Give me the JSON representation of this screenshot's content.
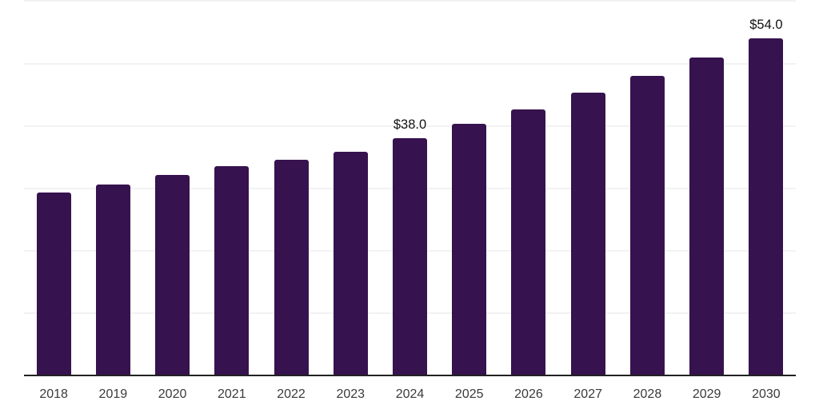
{
  "chart_data": {
    "type": "bar",
    "title": "",
    "xlabel": "",
    "ylabel": "",
    "categories": [
      "2018",
      "2019",
      "2020",
      "2021",
      "2022",
      "2023",
      "2024",
      "2025",
      "2026",
      "2027",
      "2028",
      "2029",
      "2030"
    ],
    "values": [
      29.3,
      30.6,
      32.1,
      33.5,
      34.6,
      35.9,
      38.0,
      40.3,
      42.7,
      45.3,
      48.0,
      50.9,
      54.0
    ],
    "bar_labels": [
      "",
      "",
      "",
      "",
      "",
      "",
      "$38.0",
      "",
      "",
      "",
      "",
      "",
      "$54.0"
    ],
    "ylim": [
      0,
      60
    ],
    "grid": {
      "visible": true,
      "step": 10
    },
    "y_axis_tick_labels_visible": false,
    "legend": "none"
  },
  "colors": {
    "bar": "#36124e",
    "axis": "#222222",
    "gridline": "#f2f2f2",
    "tick_label": "#3a3a3a",
    "value_label": "#111111",
    "background": "#ffffff"
  }
}
